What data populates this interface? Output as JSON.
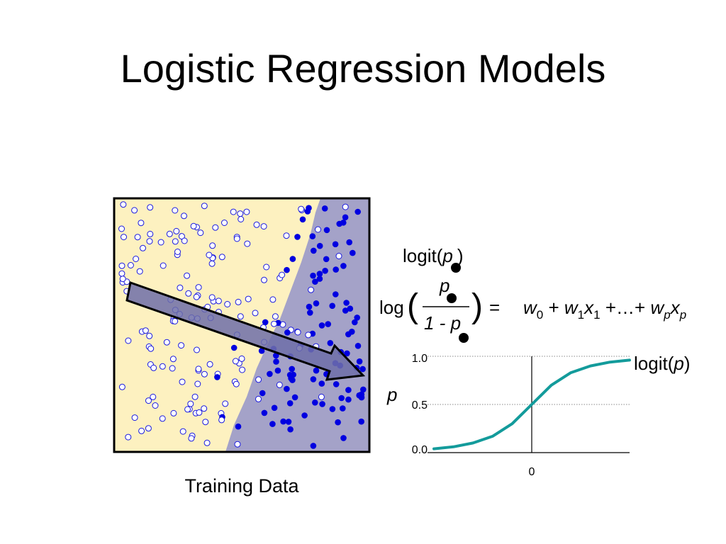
{
  "slide": {
    "title": "Logistic Regression Models"
  },
  "scatter": {
    "caption": "Training Data",
    "colors": {
      "region_negative": "#fdf1c0",
      "region_positive": "#a4a2c8",
      "point_filled": "#0000e0",
      "point_hollow": "#1a1adf",
      "arrow_fill": "#6e6ea8"
    }
  },
  "formula": {
    "logit_prefix": "logit(",
    "logit_var": "p",
    "logit_suffix": ")",
    "log": "log",
    "numerator": "p",
    "denominator": "1 - p",
    "equals": "=",
    "rhs_w": "w",
    "rhs_0": "0",
    "rhs_plus1": " + ",
    "rhs_w1": "w",
    "rhs_1a": "1",
    "rhs_x": "x",
    "rhs_1b": "1",
    "rhs_dots": " +…+ ",
    "rhs_wp": "w",
    "rhs_pa": "p",
    "rhs_xp": "x",
    "rhs_pb": "p"
  },
  "chart_data": {
    "type": "line",
    "ylabel": "p",
    "series_label_prefix": "logit(",
    "series_label_var": "p",
    "series_label_suffix": ")",
    "ylim": [
      0,
      1
    ],
    "xlim": [
      -5,
      5
    ],
    "y_ticks": [
      "1.0",
      "0.5",
      "0.0"
    ],
    "x_ticks": [
      "0"
    ],
    "gridlines": "dotted at 0.5 and 1.0",
    "color": "#139b9b",
    "x": [
      -5,
      -4,
      -3,
      -2,
      -1,
      0,
      1,
      2,
      3,
      4,
      5
    ],
    "y": [
      0.04,
      0.06,
      0.1,
      0.17,
      0.3,
      0.5,
      0.7,
      0.83,
      0.9,
      0.94,
      0.96
    ]
  }
}
